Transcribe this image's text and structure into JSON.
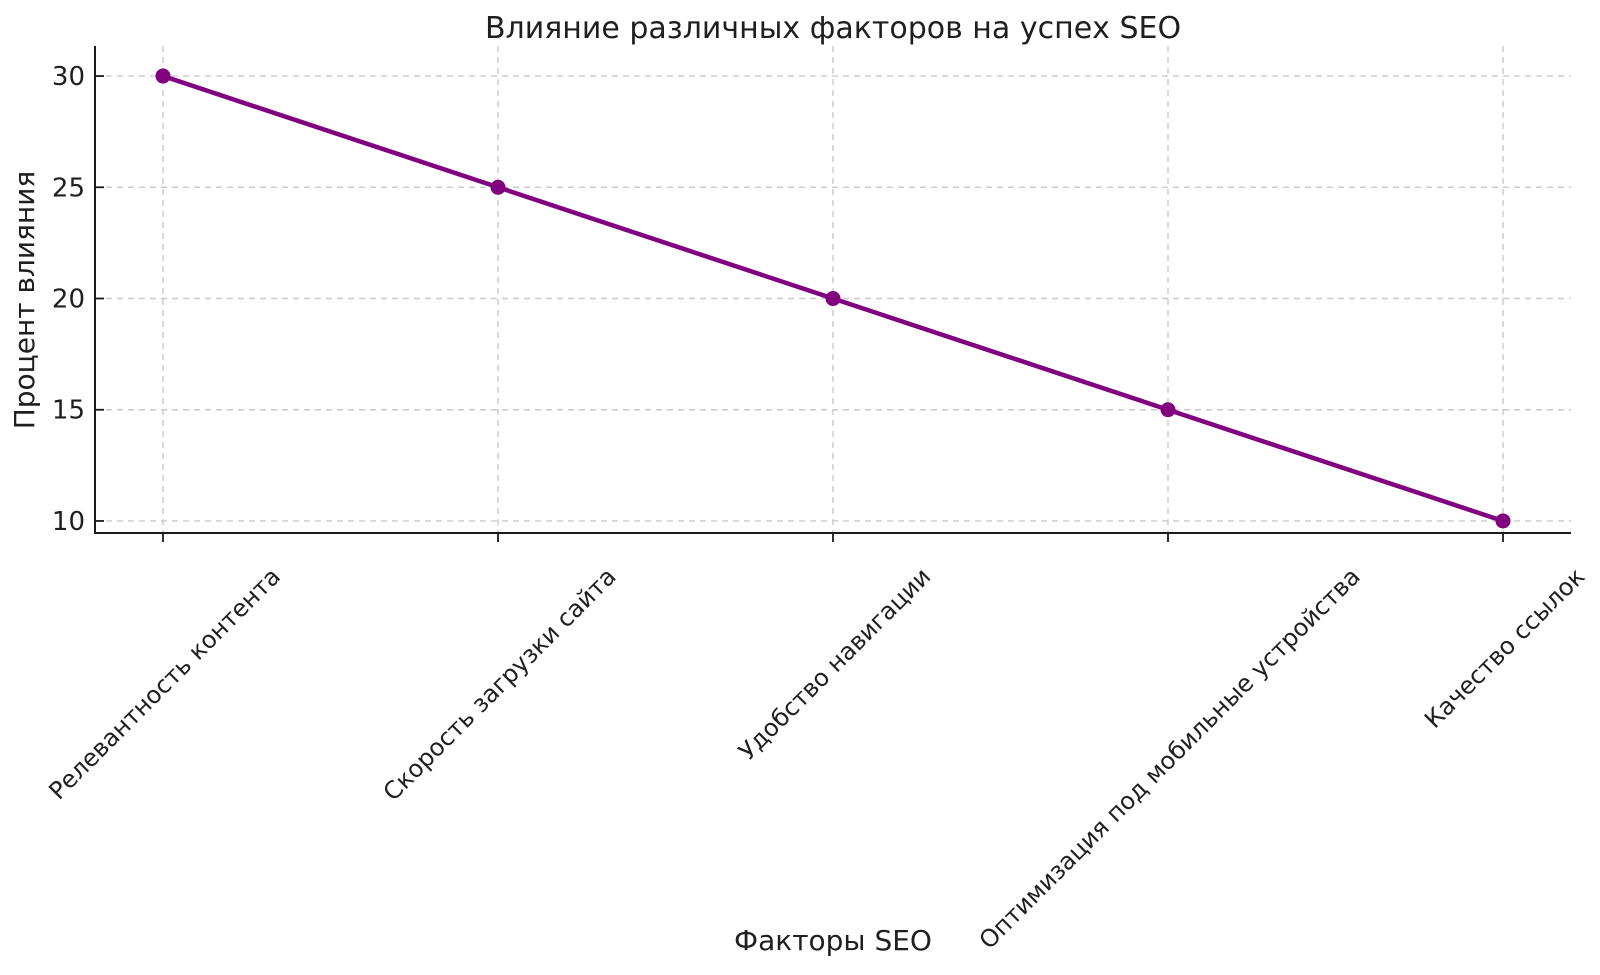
{
  "chart_data": {
    "type": "line",
    "title": "Влияние различных факторов на успех SEO",
    "xlabel": "Факторы SEO",
    "ylabel": "Процент влияния",
    "categories": [
      "Релевантность контента",
      "Скорость загрузки сайта",
      "Удобство навигации",
      "Оптимизация под мобильные устройства",
      "Качество ссылок"
    ],
    "values": [
      30,
      25,
      20,
      15,
      10
    ],
    "yticks": [
      10,
      15,
      20,
      25,
      30
    ],
    "ylim": [
      9.46,
      31.35
    ],
    "grid": true,
    "grid_style": "dashed",
    "legend": "none",
    "line_color": "#800080",
    "marker": "circle",
    "marker_color": "#800080",
    "grid_color": "#c9c9c9",
    "spine_color": "#1a1a1a",
    "text_color": "#1f1f1f",
    "background_color": "#ffffff",
    "x_tick_rotation": 45
  }
}
